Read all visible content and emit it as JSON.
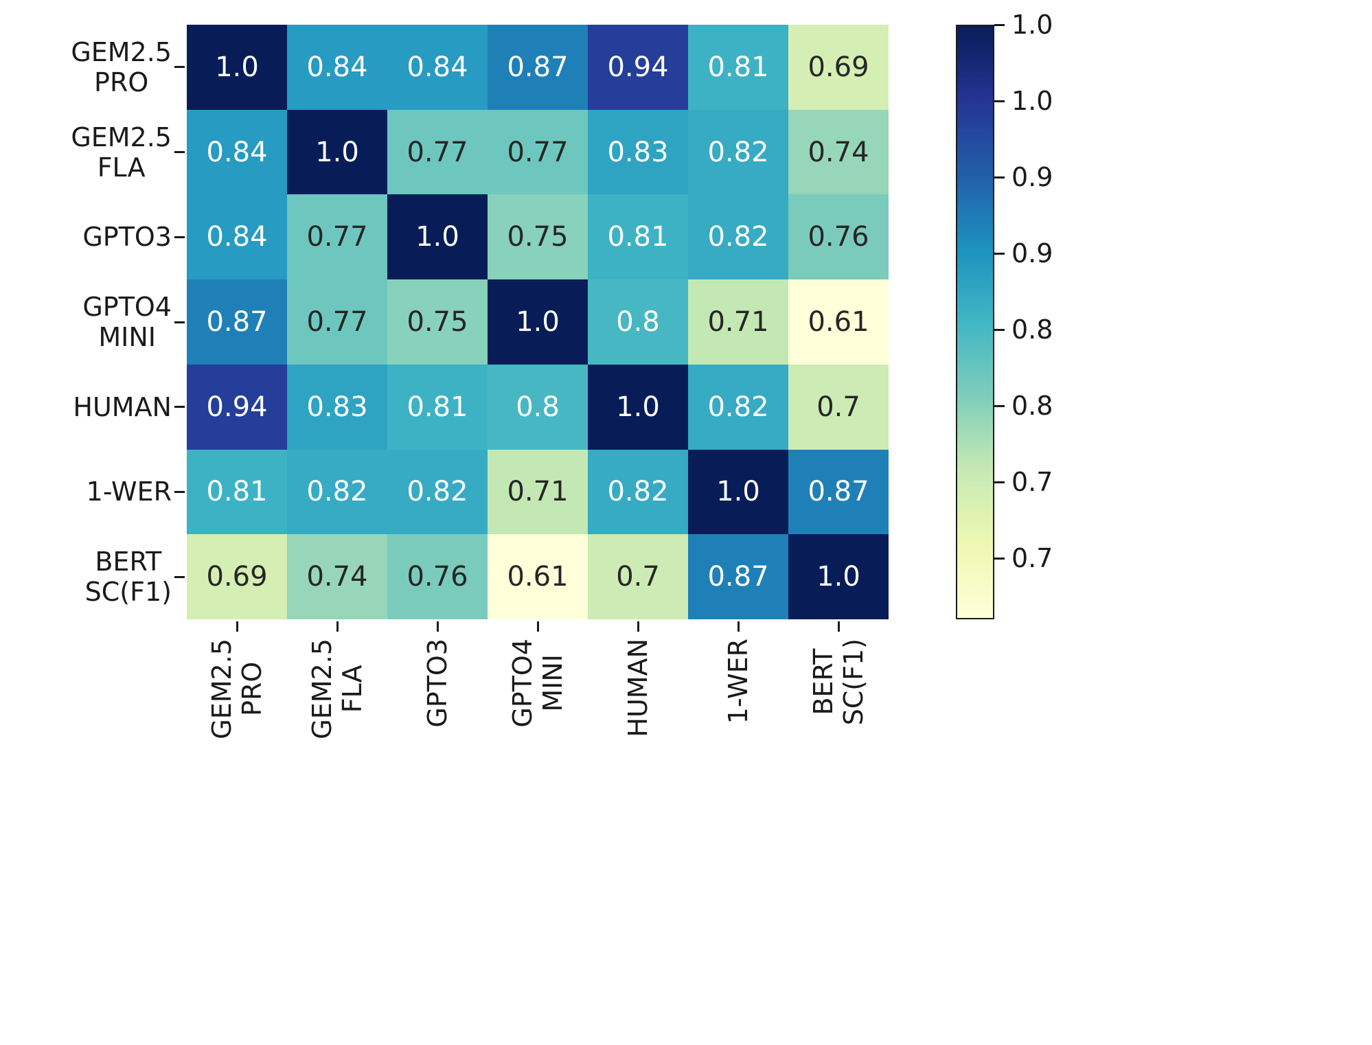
{
  "chart_data": {
    "type": "heatmap",
    "title": "",
    "labels": [
      [
        "GEM2.5",
        "PRO"
      ],
      [
        "GEM2.5",
        "FLA"
      ],
      [
        "GPTO3"
      ],
      [
        "GPTO4",
        "MINI"
      ],
      [
        "HUMAN"
      ],
      [
        "1-WER"
      ],
      [
        "BERT",
        "SC(F1)"
      ]
    ],
    "matrix": [
      [
        1.0,
        0.84,
        0.84,
        0.87,
        0.94,
        0.81,
        0.69
      ],
      [
        0.84,
        1.0,
        0.77,
        0.77,
        0.83,
        0.82,
        0.74
      ],
      [
        0.84,
        0.77,
        1.0,
        0.75,
        0.81,
        0.82,
        0.76
      ],
      [
        0.87,
        0.77,
        0.75,
        1.0,
        0.8,
        0.71,
        0.61
      ],
      [
        0.94,
        0.83,
        0.81,
        0.8,
        1.0,
        0.82,
        0.7
      ],
      [
        0.81,
        0.82,
        0.82,
        0.71,
        0.82,
        1.0,
        0.87
      ],
      [
        0.69,
        0.74,
        0.76,
        0.61,
        0.7,
        0.87,
        1.0
      ]
    ],
    "vmin": 0.61,
    "vmax": 1.0,
    "colormap": "YlGnBu",
    "colormap_stops": [
      "#ffffd9",
      "#edf8b1",
      "#c7e9b4",
      "#7fcdbb",
      "#41b6c4",
      "#1d91c0",
      "#225ea8",
      "#253494",
      "#081d58"
    ],
    "colorbar_ticks": [
      1.0,
      0.95,
      0.9,
      0.85,
      0.8,
      0.75,
      0.7,
      0.65
    ],
    "colorbar_tick_labels": [
      "1.0",
      "1.0",
      "0.9",
      "0.9",
      "0.8",
      "0.8",
      "0.7",
      "0.7"
    ],
    "annotation_color_light": "#ffffff",
    "annotation_color_dark": "#262626",
    "legend_position": "right",
    "grid": false
  }
}
